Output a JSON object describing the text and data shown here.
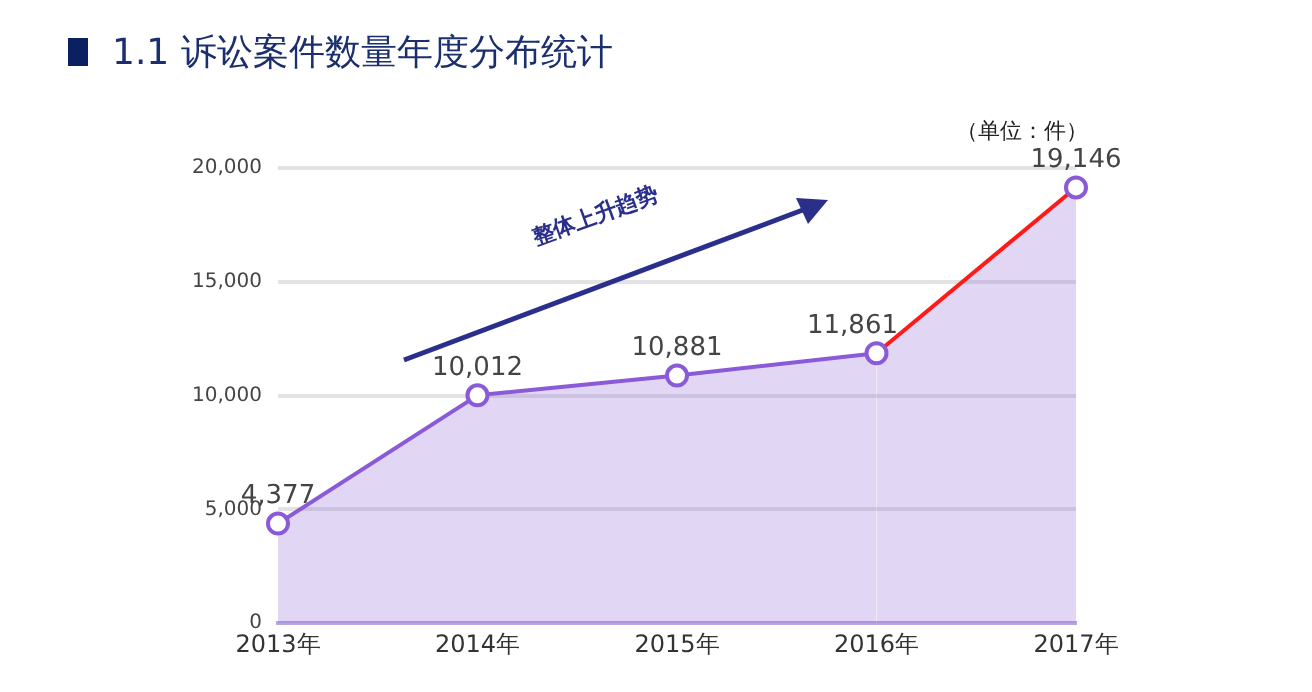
{
  "chart_data": {
    "type": "area",
    "title": "1.1 诉讼案件数量年度分布统计",
    "categories": [
      "2013年",
      "2014年",
      "2015年",
      "2016年",
      "2017年"
    ],
    "series": [
      {
        "color": "#8a5ad8",
        "colors": [
          "#8a5ad8",
          "#8a5ad8",
          "#8a5ad8",
          "#8a5ad8",
          "#ff1a1a"
        ],
        "values": [
          4377,
          10012,
          10881,
          11861,
          19146
        ],
        "value_labels": [
          "4,377",
          "10,012",
          "10,881",
          "11,861",
          "19,146"
        ]
      }
    ],
    "ylim": [
      0,
      20000
    ],
    "yticks": [
      {
        "value": 0,
        "label": "0"
      },
      {
        "value": 5000,
        "label": "5,000"
      },
      {
        "value": 10000,
        "label": "10,000"
      },
      {
        "value": 15000,
        "label": "15,000"
      },
      {
        "value": 20000,
        "label": "20,000"
      }
    ],
    "grid": "y",
    "marker": "circle",
    "annotations": [
      "（单位：件）",
      "整体上升趋势"
    ]
  }
}
